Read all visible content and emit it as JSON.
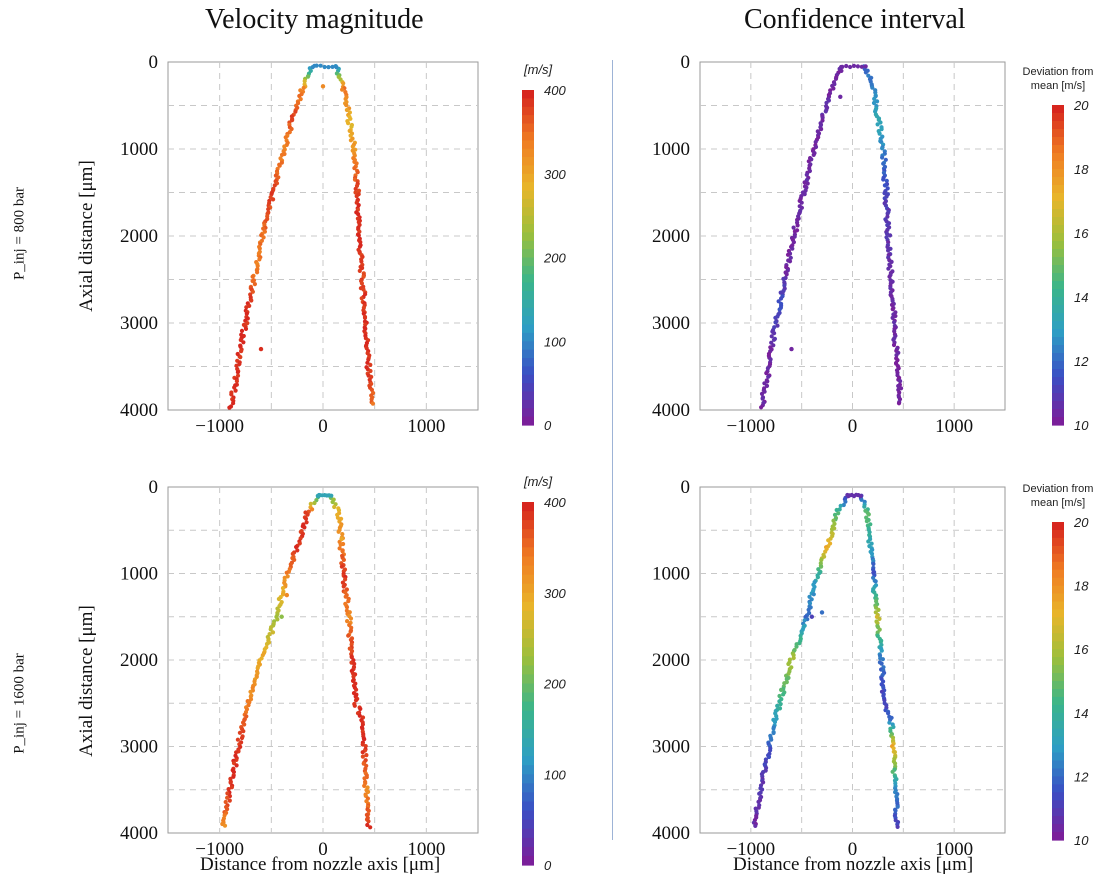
{
  "figure": {
    "col_titles": [
      "Velocity magnitude",
      "Confidence interval"
    ],
    "row_labels": [
      "P_inj = 800 bar",
      "P_inj = 1600 bar"
    ],
    "y_label": "Axial distance [μm]",
    "x_label": "Distance from nozzle axis [μm]"
  },
  "colorbars": {
    "velocity": {
      "title": "[m/s]",
      "range": [
        0,
        400
      ],
      "ticks": [
        "0",
        "100",
        "200",
        "300",
        "400"
      ]
    },
    "confidence": {
      "title_line1": "Deviation from",
      "title_line2": "mean [m/s]",
      "range": [
        10,
        20
      ],
      "ticks": [
        "10",
        "12",
        "14",
        "16",
        "18",
        "20"
      ]
    },
    "palette": [
      "#7a1f9a",
      "#3a4fc4",
      "#2e9ec4",
      "#3bb58a",
      "#9bbf3c",
      "#e8b52a",
      "#f07d23",
      "#d7261e"
    ]
  },
  "chart_data": [
    {
      "type": "scatter",
      "panel": "velocity-800",
      "title": "Velocity magnitude",
      "ylabel": "Axial distance [μm]",
      "xlim": [
        -1500,
        1500
      ],
      "ylim": [
        4000,
        0
      ],
      "xticks": [
        "−1000",
        "0",
        "1000"
      ],
      "yticks": [
        "0",
        "1000",
        "2000",
        "3000",
        "4000"
      ],
      "grid": true,
      "left_edge": [
        [
          -100,
          50
        ],
        [
          -200,
          300
        ],
        [
          -280,
          600
        ],
        [
          -380,
          1000
        ],
        [
          -480,
          1500
        ],
        [
          -580,
          2000
        ],
        [
          -650,
          2400
        ],
        [
          -720,
          2800
        ],
        [
          -800,
          3300
        ],
        [
          -850,
          3700
        ],
        [
          -900,
          4000
        ]
      ],
      "right_edge": [
        [
          130,
          50
        ],
        [
          200,
          300
        ],
        [
          260,
          700
        ],
        [
          300,
          1000
        ],
        [
          330,
          1500
        ],
        [
          350,
          2000
        ],
        [
          380,
          2500
        ],
        [
          410,
          3000
        ],
        [
          440,
          3500
        ],
        [
          480,
          3950
        ]
      ],
      "left_values": [
        100,
        330,
        380,
        330,
        390,
        350,
        340,
        395,
        395,
        395,
        395
      ],
      "right_values": [
        100,
        350,
        280,
        320,
        390,
        395,
        380,
        395,
        395,
        350
      ],
      "extra_points": [
        [
          -600,
          3300,
          395
        ],
        [
          0,
          280,
          330
        ]
      ]
    },
    {
      "type": "scatter",
      "panel": "confidence-800",
      "title": "Confidence interval",
      "xlim": [
        -1500,
        1500
      ],
      "ylim": [
        4000,
        0
      ],
      "xticks": [
        "−1000",
        "0",
        "1000"
      ],
      "yticks": [
        "0",
        "1000",
        "2000",
        "3000",
        "4000"
      ],
      "grid": true,
      "left_edge": [
        [
          -100,
          50
        ],
        [
          -200,
          300
        ],
        [
          -280,
          600
        ],
        [
          -380,
          1000
        ],
        [
          -480,
          1500
        ],
        [
          -580,
          2000
        ],
        [
          -650,
          2400
        ],
        [
          -720,
          2800
        ],
        [
          -800,
          3300
        ],
        [
          -850,
          3700
        ],
        [
          -900,
          4000
        ]
      ],
      "right_edge": [
        [
          130,
          50
        ],
        [
          200,
          300
        ],
        [
          260,
          700
        ],
        [
          300,
          1000
        ],
        [
          330,
          1500
        ],
        [
          350,
          2000
        ],
        [
          380,
          2500
        ],
        [
          410,
          3000
        ],
        [
          440,
          3500
        ],
        [
          480,
          3950
        ]
      ],
      "left_values": [
        10.3,
        10.2,
        10.4,
        10.2,
        10.3,
        10.2,
        10.3,
        11.5,
        10.2,
        10.3,
        10.2
      ],
      "right_values": [
        11.8,
        12.5,
        13.2,
        12.4,
        11.0,
        10.6,
        10.4,
        10.3,
        10.2,
        10.2
      ],
      "extra_points": [
        [
          -600,
          3300,
          10.2
        ],
        [
          -120,
          400,
          10.3
        ]
      ]
    },
    {
      "type": "scatter",
      "panel": "velocity-1600",
      "title": "",
      "ylabel": "Axial distance [μm]",
      "xlabel": "Distance from nozzle axis [μm]",
      "xlim": [
        -1500,
        1500
      ],
      "ylim": [
        4000,
        0
      ],
      "xticks": [
        "−1000",
        "0",
        "1000"
      ],
      "yticks": [
        "0",
        "1000",
        "2000",
        "3000",
        "4000"
      ],
      "grid": true,
      "left_edge": [
        [
          -50,
          100
        ],
        [
          -150,
          300
        ],
        [
          -250,
          700
        ],
        [
          -370,
          1100
        ],
        [
          -450,
          1500
        ],
        [
          -600,
          2000
        ],
        [
          -720,
          2500
        ],
        [
          -820,
          3000
        ],
        [
          -900,
          3500
        ],
        [
          -970,
          3950
        ]
      ],
      "right_edge": [
        [
          80,
          100
        ],
        [
          150,
          300
        ],
        [
          180,
          700
        ],
        [
          200,
          1000
        ],
        [
          250,
          1500
        ],
        [
          280,
          2000
        ],
        [
          320,
          2500
        ],
        [
          380,
          2700
        ],
        [
          400,
          3000
        ],
        [
          420,
          3500
        ],
        [
          440,
          3950
        ]
      ],
      "left_values": [
        130,
        390,
        395,
        320,
        230,
        300,
        340,
        395,
        395,
        330
      ],
      "right_values": [
        200,
        300,
        340,
        395,
        330,
        395,
        395,
        395,
        395,
        330,
        395
      ],
      "extra_points": [
        [
          -400,
          1500,
          220
        ],
        [
          -350,
          1250,
          330
        ],
        [
          180,
          600,
          300
        ]
      ]
    },
    {
      "type": "scatter",
      "panel": "confidence-1600",
      "title": "",
      "xlabel": "Distance from nozzle axis [μm]",
      "xlim": [
        -1500,
        1500
      ],
      "ylim": [
        4000,
        0
      ],
      "xticks": [
        "−1000",
        "0",
        "1000"
      ],
      "yticks": [
        "0",
        "1000",
        "2000",
        "3000",
        "4000"
      ],
      "grid": true,
      "left_edge": [
        [
          -50,
          100
        ],
        [
          -150,
          300
        ],
        [
          -250,
          700
        ],
        [
          -370,
          1100
        ],
        [
          -450,
          1500
        ],
        [
          -600,
          2000
        ],
        [
          -720,
          2500
        ],
        [
          -820,
          3000
        ],
        [
          -900,
          3500
        ],
        [
          -970,
          3950
        ]
      ],
      "right_edge": [
        [
          80,
          100
        ],
        [
          150,
          300
        ],
        [
          180,
          700
        ],
        [
          200,
          1000
        ],
        [
          250,
          1500
        ],
        [
          280,
          2000
        ],
        [
          320,
          2500
        ],
        [
          380,
          2700
        ],
        [
          400,
          3000
        ],
        [
          420,
          3500
        ],
        [
          440,
          3950
        ]
      ],
      "left_values": [
        10.5,
        14.5,
        17.5,
        13.0,
        12.0,
        16.0,
        14.0,
        11.5,
        10.6,
        10.3
      ],
      "right_values": [
        11.0,
        15.0,
        13.0,
        11.5,
        16.5,
        12.0,
        11.0,
        12.0,
        17.5,
        12.5,
        11.0
      ],
      "extra_points": [
        [
          -400,
          1500,
          11.0
        ],
        [
          -300,
          1450,
          12.0
        ]
      ]
    }
  ]
}
